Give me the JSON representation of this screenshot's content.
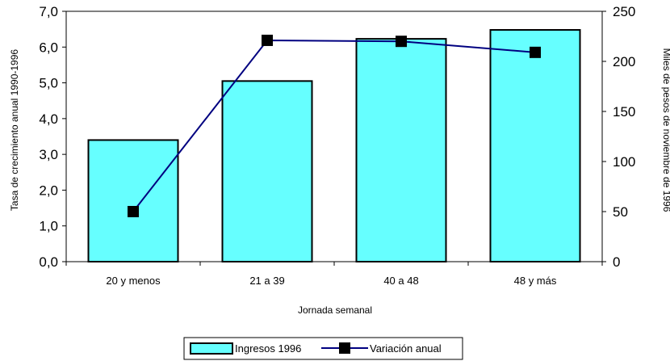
{
  "chart_data": {
    "type": "bar",
    "categories": [
      "20 y menos",
      "21 a 39",
      "40 a 48",
      "48 y más"
    ],
    "series": [
      {
        "name": "Ingresos 1996",
        "type": "bar",
        "axis": "left",
        "values": [
          3.4,
          5.05,
          6.23,
          6.48
        ]
      },
      {
        "name": "Variación anual",
        "type": "line",
        "axis": "right",
        "values": [
          50,
          221,
          220,
          209
        ]
      }
    ],
    "xlabel": "Jornada semanal",
    "ylabel": "Tasa de crecimiento anual 1990-1996",
    "ylabel_right": "Miles de pesos de noviembre de 1996",
    "ylim": [
      0,
      7
    ],
    "ylim_right": [
      0,
      250
    ],
    "yticks": [
      "0,0",
      "1,0",
      "2,0",
      "3,0",
      "4,0",
      "5,0",
      "6,0",
      "7,0"
    ],
    "yticks_right": [
      "0",
      "50",
      "100",
      "150",
      "200",
      "250"
    ],
    "legend": "bottom-center",
    "grid": false,
    "colors": {
      "bar_fill": "#66ffff",
      "bar_stroke": "#000000",
      "line": "#000080",
      "marker": "#000000"
    }
  }
}
